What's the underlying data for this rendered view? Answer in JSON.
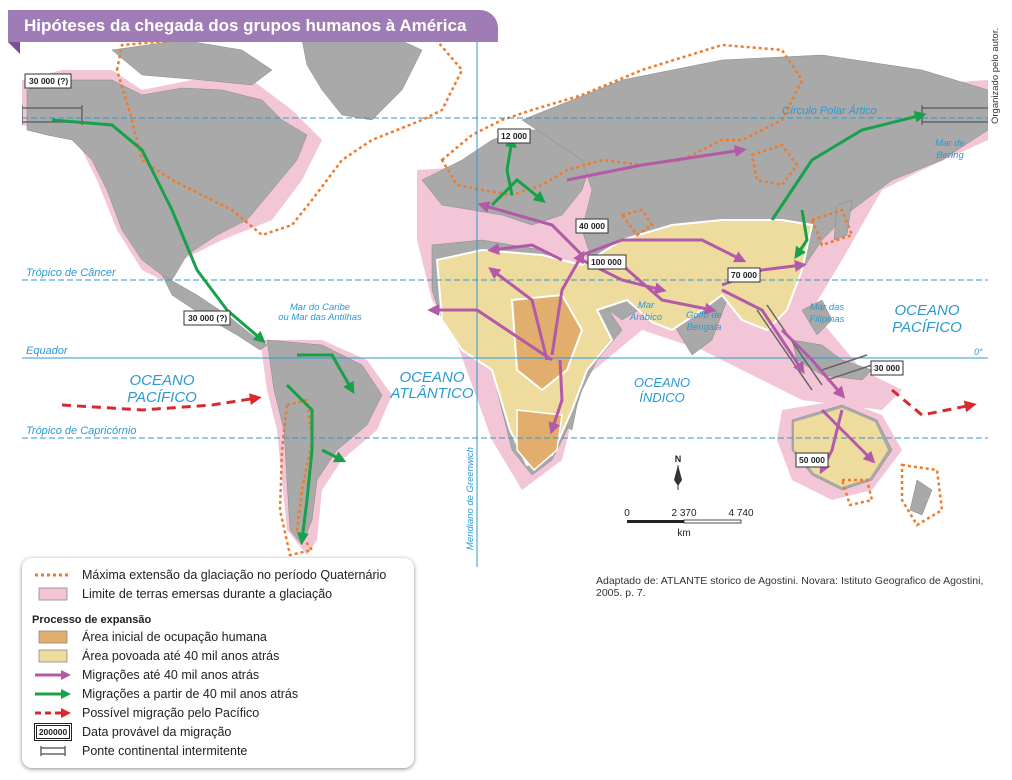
{
  "title": "Hipóteses da chegada dos grupos humanos à América",
  "side_credit": "Organizado pelo autor.",
  "source": "Adaptado de: ATLANTE storico de Agostini. Novara: Istituto Geografico de Agostini, 2005. p. 7.",
  "map": {
    "lines": {
      "polar_circle": "Círculo Polar Ártico",
      "tropic_cancer": "Trópico de Câncer",
      "equator": "Equador",
      "tropic_capricorn": "Trópico de Capricórnio",
      "greenwich": "Meridiano de Greenwich",
      "zero_degree": "0°"
    },
    "oceans": {
      "pacific_west_1": "OCEANO",
      "pacific_west_2": "PACÍFICO",
      "atlantic_1": "OCEANO",
      "atlantic_2": "ATLÂNTICO",
      "indian_1": "OCEANO",
      "indian_2": "ÍNDICO",
      "pacific_east_1": "OCEANO",
      "pacific_east_2": "PACÍFICO"
    },
    "seas": {
      "caribbean_1": "Mar do Caribe",
      "caribbean_2": "ou Mar das Antilhas",
      "arabian_1": "Mar",
      "arabian_2": "Arábico",
      "bengal_1": "Golfo de",
      "bengal_2": "Bengala",
      "philippines_1": "Mar das",
      "philippines_2": "Filipinas",
      "bering_1": "Mar de",
      "bering_2": "Bering"
    },
    "dates": {
      "bering_west": "30 000 (?)",
      "central_america": "30 000 (?)",
      "europe": "12 000",
      "middle_east": "40 000",
      "arabia": "100 000",
      "south_asia": "70 000",
      "pacific_east": "30 000",
      "australia": "50 000"
    },
    "compass": "N",
    "scale": {
      "ticks": [
        "0",
        "2 370",
        "4 740"
      ],
      "unit": "km"
    }
  },
  "legend": {
    "items_top": [
      "Máxima extensão da glaciação no período Quaternário",
      "Limite de terras emersas durante a glaciação"
    ],
    "section_title": "Processo de expansão",
    "items_process": [
      "Área inicial de ocupação humana",
      "Área povoada até 40 mil anos atrás",
      "Migrações até 40 mil anos atrás",
      "Migrações a partir de 40 mil anos atrás",
      "Possível migração pelo Pacífico",
      "Data provável da migração",
      "Ponte continental intermitente"
    ],
    "date_box_sample": "200000"
  },
  "colors": {
    "ocean": "#ffffff",
    "land": "#a9a9a9",
    "glacial_outline": "#ef7a2a",
    "emerged_land": "#f2c6d6",
    "initial_area": "#e2ae6e",
    "populated_area": "#eddc9e",
    "migration_early": "#b25aa8",
    "migration_late": "#18a04a",
    "pacific_route": "#d9282f",
    "grid_lines": "#2a9ad4",
    "title_banner": "#a07cb6"
  }
}
